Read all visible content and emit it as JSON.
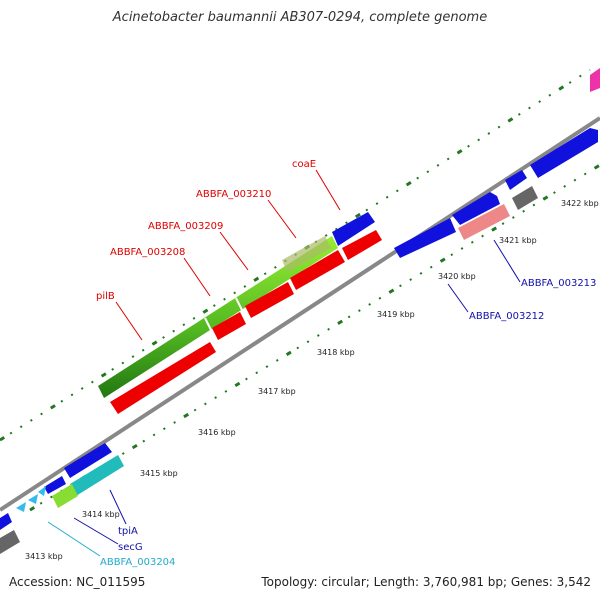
{
  "title": "Acinetobacter baumannii AB307-0294, complete genome",
  "footer": {
    "accession": "Accession: NC_011595",
    "summary": "Topology: circular; Length: 3,760,981 bp; Genes: 3,542"
  },
  "colors": {
    "backbone": "#888888",
    "cds_forward": "#0000dd",
    "cds_reverse": "#ee0000",
    "ticks": "#227722"
  },
  "scale_labels": [
    "3413 kbp",
    "3414 kbp",
    "3415 kbp",
    "3416 kbp",
    "3417 kbp",
    "3418 kbp",
    "3419 kbp",
    "3420 kbp",
    "3421 kbp",
    "3422 kbp"
  ],
  "gene_labels": {
    "coaE": "coaE",
    "b3210": "ABBFA_003210",
    "b3209": "ABBFA_003209",
    "b3208": "ABBFA_003208",
    "pilB": "pilB",
    "b3212": "ABBFA_003212",
    "b3213": "ABBFA_003213",
    "tpiA": "tpiA",
    "secG": "secG",
    "b3204": "ABBFA_003204"
  }
}
